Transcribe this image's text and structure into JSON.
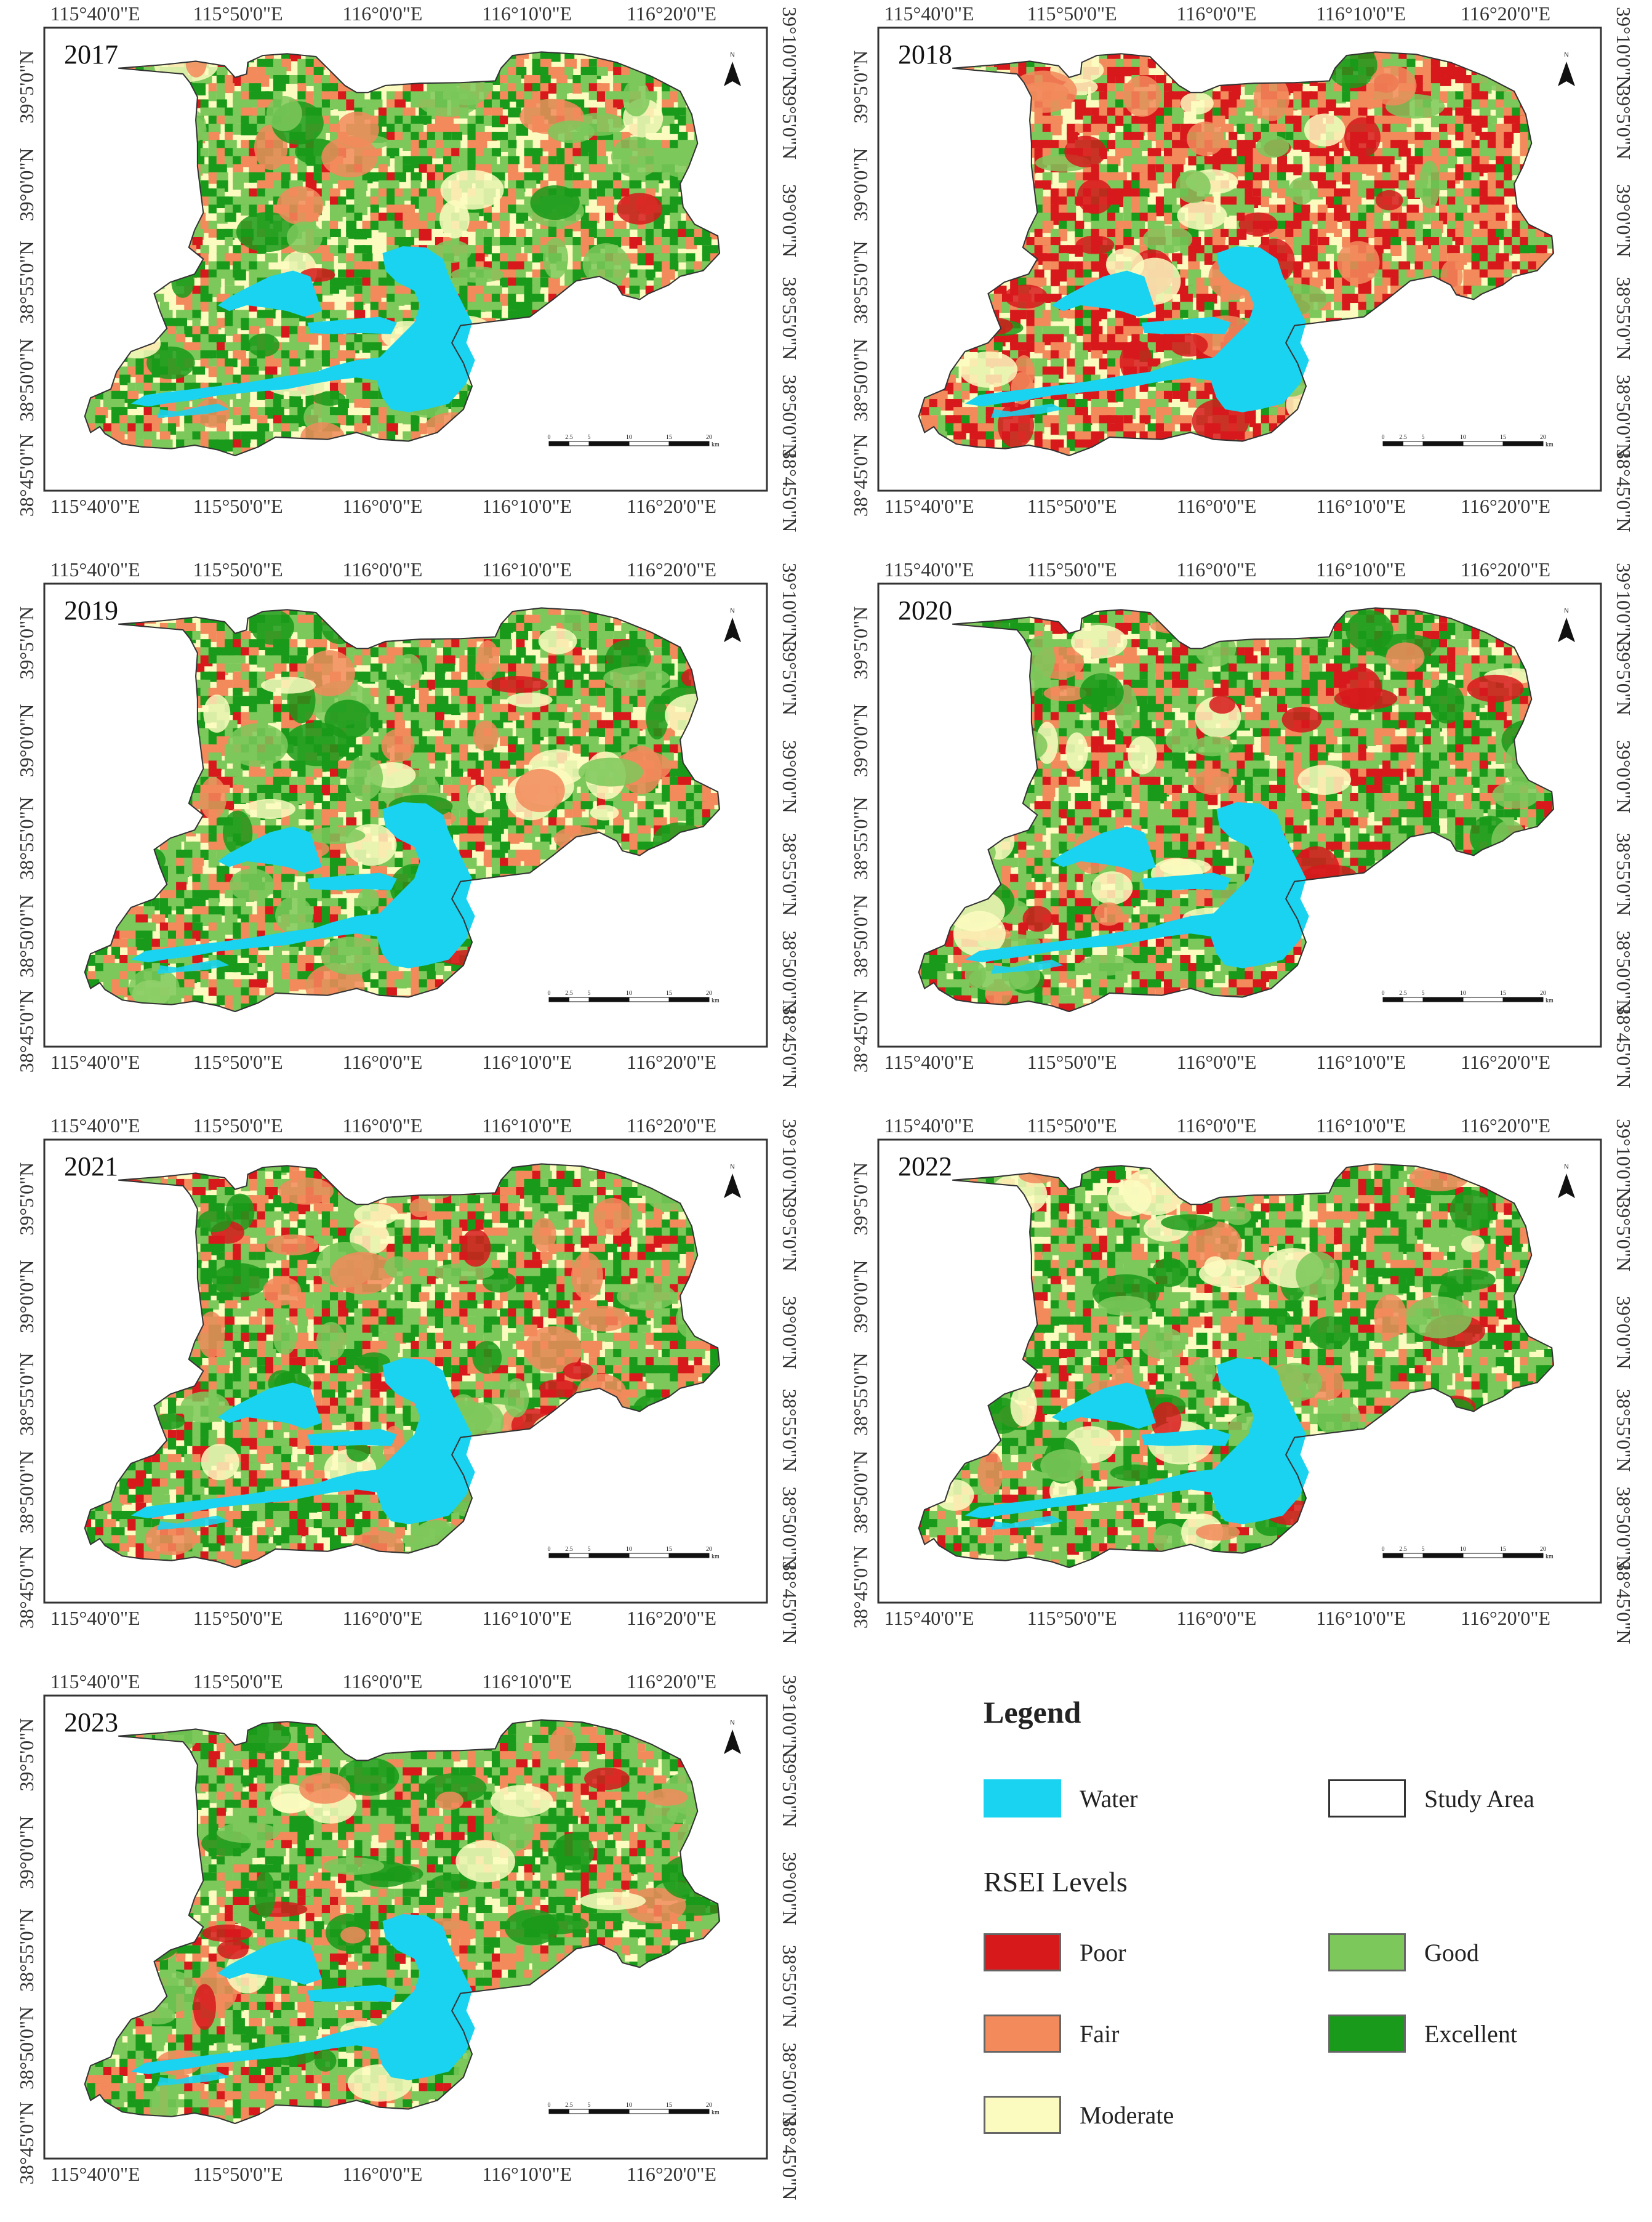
{
  "panels": [
    {
      "year": "2017",
      "scheme": {
        "Poor": 0.04,
        "Fair": 0.2,
        "Moderate": 0.24,
        "Good": 0.3,
        "Excellent": 0.22
      }
    },
    {
      "year": "2018",
      "scheme": {
        "Poor": 0.28,
        "Fair": 0.22,
        "Moderate": 0.22,
        "Good": 0.22,
        "Excellent": 0.06
      }
    },
    {
      "year": "2019",
      "scheme": {
        "Poor": 0.07,
        "Fair": 0.2,
        "Moderate": 0.2,
        "Good": 0.3,
        "Excellent": 0.23
      }
    },
    {
      "year": "2020",
      "scheme": {
        "Poor": 0.14,
        "Fair": 0.16,
        "Moderate": 0.16,
        "Good": 0.32,
        "Excellent": 0.22
      }
    },
    {
      "year": "2021",
      "scheme": {
        "Poor": 0.1,
        "Fair": 0.18,
        "Moderate": 0.2,
        "Good": 0.3,
        "Excellent": 0.22
      }
    },
    {
      "year": "2022",
      "scheme": {
        "Poor": 0.06,
        "Fair": 0.16,
        "Moderate": 0.2,
        "Good": 0.32,
        "Excellent": 0.26
      }
    },
    {
      "year": "2023",
      "scheme": {
        "Poor": 0.06,
        "Fair": 0.2,
        "Moderate": 0.14,
        "Good": 0.36,
        "Excellent": 0.24
      }
    }
  ],
  "axes": {
    "lon_labels": [
      "115°40'0\"E",
      "115°50'0\"E",
      "116°0'0\"E",
      "116°10'0\"E",
      "116°20'0\"E"
    ],
    "lat_labels_left": [
      "39°5'0\"N",
      "39°0'0\"N",
      "38°55'0\"N",
      "38°50'0\"N",
      "38°45'0\"N"
    ],
    "lat_labels_right": [
      "39°10'0\"N",
      "39°5'0\"N",
      "39°0'0\"N",
      "38°55'0\"N",
      "38°50'0\"N",
      "38°45'0\"N"
    ]
  },
  "north_arrow": {
    "letter": "N"
  },
  "scale_bar": {
    "ticks": [
      "0",
      "2.5",
      "5",
      "10",
      "15",
      "20"
    ],
    "unit": "km"
  },
  "legend": {
    "title": "Legend",
    "water_label": "Water",
    "study_area_label": "Study Area",
    "rsei_title": "RSEI  Levels",
    "levels": [
      {
        "name": "Poor",
        "color": "#d7191c"
      },
      {
        "name": "Fair",
        "color": "#f28a5c"
      },
      {
        "name": "Moderate",
        "color": "#fbfbbf"
      },
      {
        "name": "Good",
        "color": "#7cc85a"
      },
      {
        "name": "Excellent",
        "color": "#1a9a1a"
      }
    ]
  },
  "colors": {
    "water": "#19d3f0",
    "poor": "#d7191c",
    "fair": "#f28a5c",
    "moderate": "#fbfbbf",
    "good": "#7cc85a",
    "excellent": "#1a9a1a",
    "frame": "#333333"
  }
}
